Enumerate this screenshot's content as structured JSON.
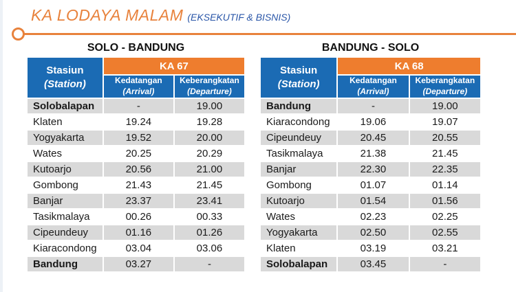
{
  "title": {
    "main": "KA LODAYA MALAM",
    "sub": "(EKSEKUTIF & BISNIS)"
  },
  "colors": {
    "accent_orange": "#ee7d2e",
    "accent_blue": "#1b6bb4",
    "title_orange": "#e8823c",
    "subtitle_blue": "#2a56a8",
    "row_stripe_gray": "#d9d9d9",
    "body_text": "#1a1a1a"
  },
  "tables": [
    {
      "route_title": "SOLO - BANDUNG",
      "train_code": "KA 67",
      "headers": {
        "station_label": "Stasiun",
        "station_sublabel": "(Station)",
        "arrival_label": "Kedatangan",
        "arrival_sublabel": "(Arrival)",
        "departure_label": "Keberangkatan",
        "departure_sublabel": "(Departure)"
      },
      "rows": [
        {
          "station": "Solobalapan",
          "arrival": "-",
          "departure": "19.00",
          "bold": true
        },
        {
          "station": "Klaten",
          "arrival": "19.24",
          "departure": "19.28",
          "bold": false
        },
        {
          "station": "Yogyakarta",
          "arrival": "19.52",
          "departure": "20.00",
          "bold": false
        },
        {
          "station": "Wates",
          "arrival": "20.25",
          "departure": "20.29",
          "bold": false
        },
        {
          "station": "Kutoarjo",
          "arrival": "20.56",
          "departure": "21.00",
          "bold": false
        },
        {
          "station": "Gombong",
          "arrival": "21.43",
          "departure": "21.45",
          "bold": false
        },
        {
          "station": "Banjar",
          "arrival": "23.37",
          "departure": "23.41",
          "bold": false
        },
        {
          "station": "Tasikmalaya",
          "arrival": "00.26",
          "departure": "00.33",
          "bold": false
        },
        {
          "station": "Cipeundeuy",
          "arrival": "01.16",
          "departure": "01.26",
          "bold": false
        },
        {
          "station": "Kiaracondong",
          "arrival": "03.04",
          "departure": "03.06",
          "bold": false
        },
        {
          "station": "Bandung",
          "arrival": "03.27",
          "departure": "-",
          "bold": true
        }
      ]
    },
    {
      "route_title": "BANDUNG - SOLO",
      "train_code": "KA 68",
      "headers": {
        "station_label": "Stasiun",
        "station_sublabel": "(Station)",
        "arrival_label": "Kedatangan",
        "arrival_sublabel": "(Arrival)",
        "departure_label": "Keberangkatan",
        "departure_sublabel": "(Departure)"
      },
      "rows": [
        {
          "station": "Bandung",
          "arrival": "-",
          "departure": "19.00",
          "bold": true
        },
        {
          "station": "Kiaracondong",
          "arrival": "19.06",
          "departure": "19.07",
          "bold": false
        },
        {
          "station": "Cipeundeuy",
          "arrival": "20.45",
          "departure": "20.55",
          "bold": false
        },
        {
          "station": "Tasikmalaya",
          "arrival": "21.38",
          "departure": "21.45",
          "bold": false
        },
        {
          "station": "Banjar",
          "arrival": "22.30",
          "departure": "22.35",
          "bold": false
        },
        {
          "station": "Gombong",
          "arrival": "01.07",
          "departure": "01.14",
          "bold": false
        },
        {
          "station": "Kutoarjo",
          "arrival": "01.54",
          "departure": "01.56",
          "bold": false
        },
        {
          "station": "Wates",
          "arrival": "02.23",
          "departure": "02.25",
          "bold": false
        },
        {
          "station": "Yogyakarta",
          "arrival": "02.50",
          "departure": "02.55",
          "bold": false
        },
        {
          "station": "Klaten",
          "arrival": "03.19",
          "departure": "03.21",
          "bold": false
        },
        {
          "station": "Solobalapan",
          "arrival": "03.45",
          "departure": "-",
          "bold": true
        }
      ]
    }
  ]
}
